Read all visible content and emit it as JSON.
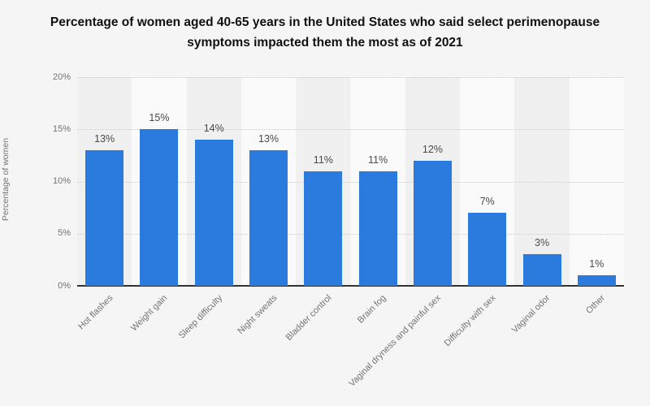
{
  "chart_data": {
    "type": "bar",
    "title": "Percentage of women aged 40-65 years in the United States who said select perimenopause symptoms impacted them the most as of 2021",
    "categories": [
      "Hot flashes",
      "Weight gain",
      "Sleep difficulty",
      "Night sweats",
      "Bladder control",
      "Brain fog",
      "Vaginal dryness and painful sex",
      "Difficulty with sex",
      "Vaginal odor",
      "Other"
    ],
    "values": [
      13,
      15,
      14,
      13,
      11,
      11,
      12,
      7,
      3,
      1
    ],
    "value_labels": [
      "13%",
      "15%",
      "14%",
      "13%",
      "11%",
      "11%",
      "12%",
      "7%",
      "3%",
      "1%"
    ],
    "xlabel": "",
    "ylabel": "Percentage of women",
    "ylim": [
      0,
      20
    ],
    "yticks": [
      0,
      5,
      10,
      15,
      20
    ],
    "ytick_labels": [
      "0%",
      "5%",
      "10%",
      "15%",
      "20%"
    ],
    "grid": "horizontal-dotted",
    "legend": "none",
    "bar_color": "#2b7add",
    "background_color": "#f5f5f5"
  }
}
